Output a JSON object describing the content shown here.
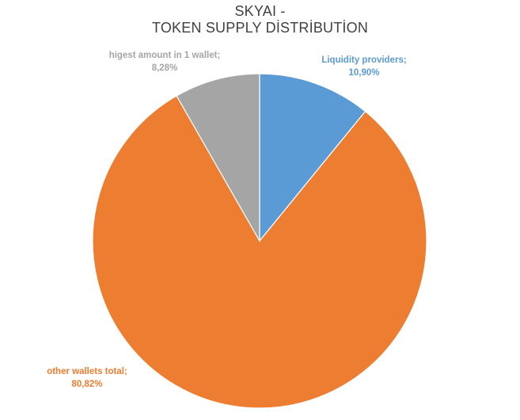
{
  "chart_data": {
    "type": "pie",
    "title_lines": [
      "SKYAI -",
      "TOKEN SUPPLY DİSTRİBUTİON"
    ],
    "slices": [
      {
        "name": "Liquidity providers",
        "value": 10.9,
        "label_name": "Liquidity providers;",
        "label_value": "10,90%",
        "color": "#5B9BD5"
      },
      {
        "name": "other wallets total",
        "value": 80.82,
        "label_name": "other wallets total;",
        "label_value": "80,82%",
        "color": "#ED7D31"
      },
      {
        "name": "higest amount in 1 wallet",
        "value": 8.28,
        "label_name": "higest amount in 1 wallet;",
        "label_value": "8,28%",
        "color": "#A5A5A5"
      }
    ],
    "start_angle": "12 o'clock",
    "direction": "clockwise",
    "legend": "none"
  }
}
